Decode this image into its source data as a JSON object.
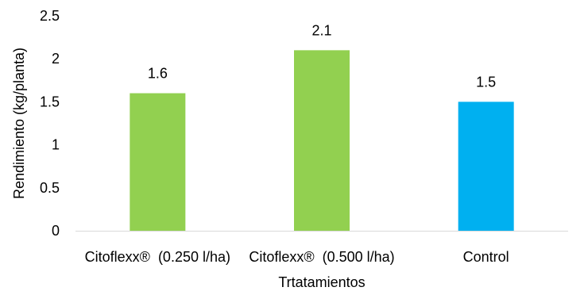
{
  "chart_data": {
    "type": "bar",
    "title": "",
    "xlabel": "Trtatamientos",
    "ylabel": "Rendimiento (kg/planta)",
    "categories": [
      "Citoflexx®  (0.250 l/ha)",
      "Citoflexx®  (0.500 l/ha)",
      "Control"
    ],
    "values": [
      1.6,
      2.1,
      1.5
    ],
    "data_labels": [
      "1.6",
      "2.1",
      "1.5"
    ],
    "bar_colors": [
      "#92d050",
      "#92d050",
      "#00b0f0"
    ],
    "ylim": [
      0,
      2.5
    ],
    "yticks": [
      0,
      0.5,
      1,
      1.5,
      2,
      2.5
    ],
    "ytick_labels": [
      "0",
      "0.5",
      "1",
      "1.5",
      "2",
      "2.5"
    ],
    "grid": false,
    "legend": "none",
    "axis_color": "#d9d9d9"
  }
}
